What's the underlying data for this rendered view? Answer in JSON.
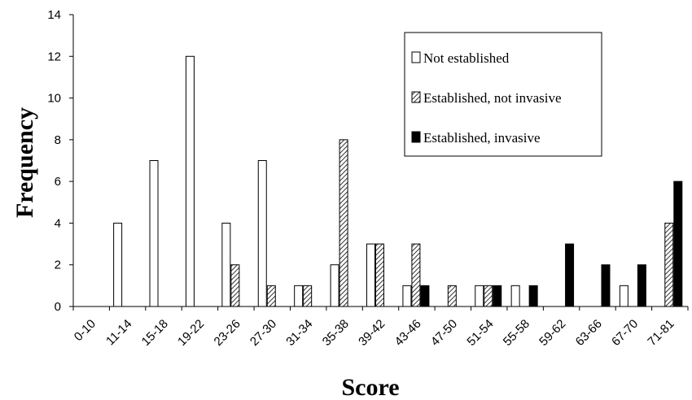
{
  "chart_data": {
    "type": "bar",
    "title": "",
    "xlabel": "Score",
    "ylabel": "Frequency",
    "ylim": [
      0,
      14
    ],
    "yticks": [
      0,
      2,
      4,
      6,
      8,
      10,
      12,
      14
    ],
    "grid": false,
    "legend_position": "top-right",
    "categories": [
      "0-10",
      "11-14",
      "15-18",
      "19-22",
      "23-26",
      "27-30",
      "31-34",
      "35-38",
      "39-42",
      "43-46",
      "47-50",
      "51-54",
      "55-58",
      "59-62",
      "63-66",
      "67-70",
      "71-81"
    ],
    "series": [
      {
        "name": "Not established",
        "fill": "white",
        "values": [
          0,
          4,
          7,
          12,
          4,
          7,
          1,
          2,
          3,
          1,
          0,
          1,
          1,
          0,
          0,
          1,
          0
        ]
      },
      {
        "name": "Established, not invasive",
        "fill": "hatched",
        "values": [
          0,
          0,
          0,
          0,
          2,
          1,
          1,
          8,
          3,
          3,
          1,
          1,
          0,
          0,
          0,
          0,
          4
        ]
      },
      {
        "name": "Established, invasive",
        "fill": "black",
        "values": [
          0,
          0,
          0,
          0,
          0,
          0,
          0,
          0,
          0,
          1,
          0,
          1,
          1,
          3,
          2,
          2,
          6
        ]
      }
    ]
  },
  "colors": {
    "bar_stroke": "#000000",
    "invasive": "#000000",
    "not_established": "#ffffff",
    "hatch": "#555555"
  }
}
